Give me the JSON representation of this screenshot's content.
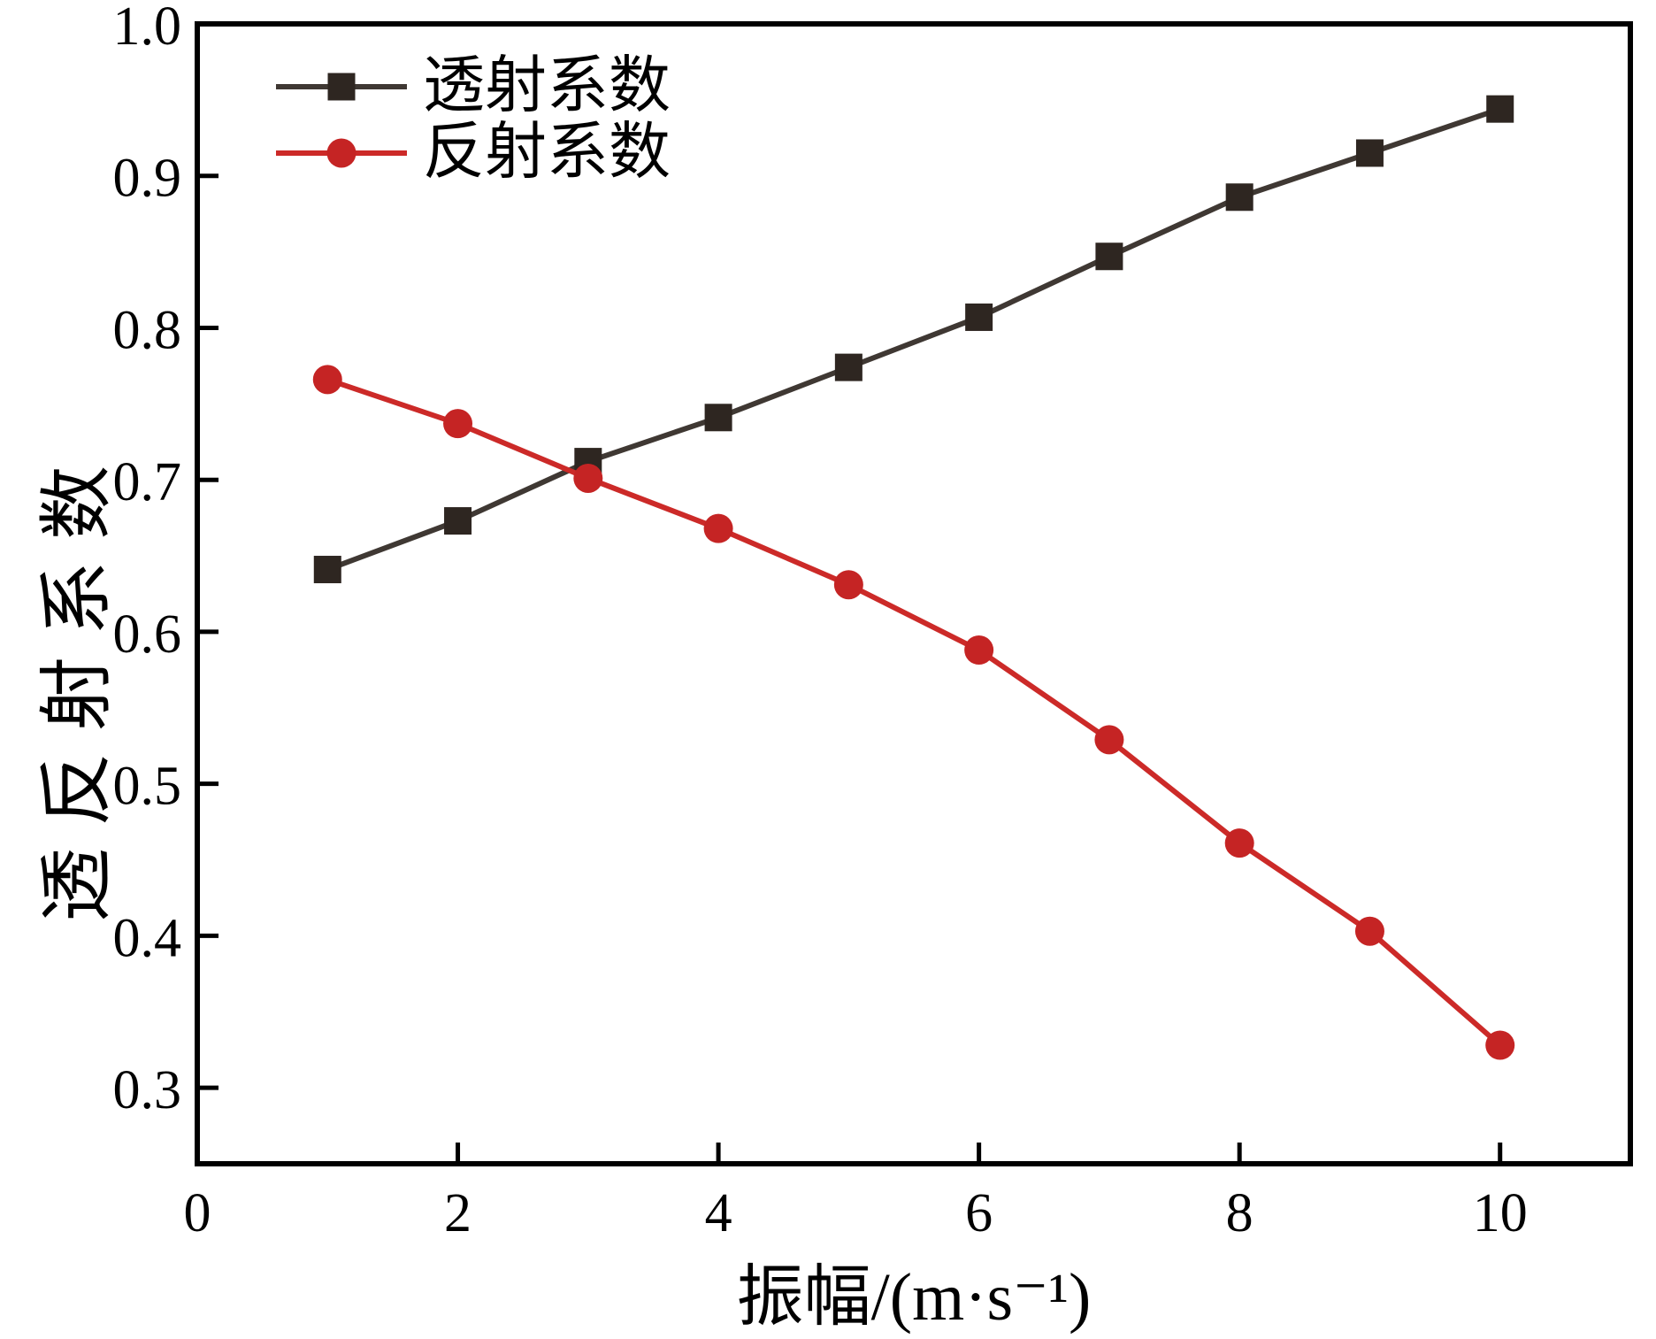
{
  "chart_data": {
    "type": "line",
    "title": "",
    "xlabel": "振幅/(m·s⁻¹)",
    "ylabel": "透反射系数",
    "xlim": [
      0,
      11
    ],
    "ylim": [
      0.25,
      1.0
    ],
    "grid": false,
    "legend_position": "top-left-inside",
    "axis_color": "#000000",
    "background": "#ffffff",
    "tick_style": "inward",
    "x_ticks": {
      "values": [
        0,
        2,
        4,
        6,
        8,
        10
      ],
      "labels": [
        "0",
        "2",
        "4",
        "6",
        "8",
        "10"
      ]
    },
    "y_ticks": {
      "values": [
        0.3,
        0.4,
        0.5,
        0.6,
        0.7,
        0.8,
        0.9,
        1.0
      ],
      "labels": [
        "0.3",
        "0.4",
        "0.5",
        "0.6",
        "0.7",
        "0.8",
        "0.9",
        "1.0"
      ]
    },
    "x": [
      1,
      2,
      3,
      4,
      5,
      6,
      7,
      8,
      9,
      10
    ],
    "series": [
      {
        "name": "透射系数",
        "marker": "square",
        "line_color": "#3f3833",
        "marker_color": "#2e2621",
        "values": [
          0.641,
          0.673,
          0.712,
          0.741,
          0.774,
          0.807,
          0.847,
          0.886,
          0.915,
          0.944
        ]
      },
      {
        "name": "反射系数",
        "marker": "circle",
        "line_color": "#cc2a28",
        "marker_color": "#c52424",
        "values": [
          0.766,
          0.737,
          0.701,
          0.668,
          0.631,
          0.588,
          0.529,
          0.461,
          0.403,
          0.328
        ]
      }
    ]
  }
}
